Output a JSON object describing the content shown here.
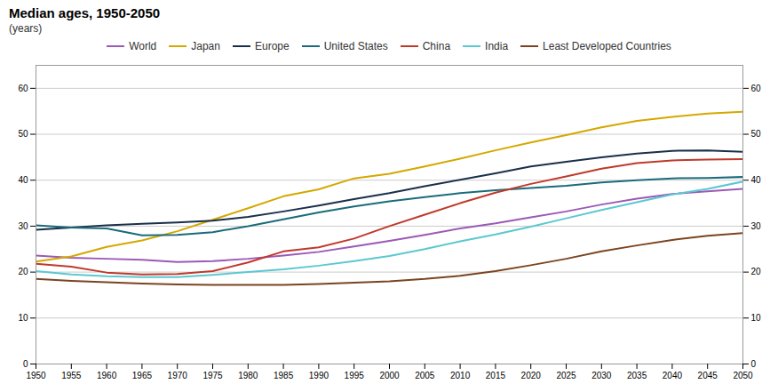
{
  "chart_data": {
    "type": "line",
    "title": "Median ages, 1950-2050",
    "subtitle": "(years)",
    "x": [
      1950,
      1955,
      1960,
      1965,
      1970,
      1975,
      1980,
      1985,
      1990,
      1995,
      2000,
      2005,
      2010,
      2015,
      2020,
      2025,
      2030,
      2035,
      2040,
      2045,
      2050
    ],
    "series": [
      {
        "name": "World",
        "color": "#9b59b6",
        "values": [
          23.6,
          23.1,
          22.9,
          22.7,
          22.2,
          22.4,
          22.9,
          23.6,
          24.4,
          25.6,
          26.8,
          28.1,
          29.5,
          30.6,
          31.9,
          33.2,
          34.7,
          36.0,
          37.0,
          37.6,
          38.1
        ]
      },
      {
        "name": "Japan",
        "color": "#d4a800",
        "values": [
          22.3,
          23.4,
          25.5,
          26.9,
          28.9,
          31.4,
          33.9,
          36.5,
          38.0,
          40.4,
          41.4,
          43.0,
          44.7,
          46.5,
          48.2,
          49.8,
          51.5,
          52.9,
          53.8,
          54.5,
          54.9
        ]
      },
      {
        "name": "Europe",
        "color": "#1a2f4a",
        "values": [
          29.2,
          29.7,
          30.2,
          30.5,
          30.8,
          31.2,
          32.0,
          33.2,
          34.5,
          35.9,
          37.2,
          38.7,
          40.1,
          41.5,
          43.0,
          44.0,
          45.0,
          45.8,
          46.4,
          46.5,
          46.2
        ]
      },
      {
        "name": "United States",
        "color": "#1a6b7a",
        "values": [
          30.2,
          29.7,
          29.5,
          28.0,
          28.1,
          28.7,
          30.0,
          31.5,
          33.0,
          34.3,
          35.4,
          36.3,
          37.2,
          37.8,
          38.3,
          38.8,
          39.5,
          40.0,
          40.4,
          40.5,
          40.7
        ]
      },
      {
        "name": "China",
        "color": "#c0392b",
        "values": [
          21.8,
          21.2,
          19.9,
          19.5,
          19.6,
          20.2,
          22.1,
          24.5,
          25.4,
          27.3,
          30.0,
          32.5,
          35.0,
          37.3,
          39.2,
          40.8,
          42.5,
          43.7,
          44.3,
          44.5,
          44.6
        ]
      },
      {
        "name": "India",
        "color": "#5bc8d0",
        "values": [
          20.2,
          19.5,
          19.1,
          18.9,
          18.9,
          19.4,
          20.0,
          20.6,
          21.4,
          22.4,
          23.5,
          25.0,
          26.7,
          28.2,
          29.9,
          31.7,
          33.5,
          35.2,
          36.9,
          38.1,
          39.7
        ]
      },
      {
        "name": "Least Developed Countries",
        "color": "#7b4420",
        "values": [
          18.5,
          18.1,
          17.8,
          17.5,
          17.3,
          17.2,
          17.2,
          17.2,
          17.4,
          17.7,
          18.0,
          18.5,
          19.2,
          20.2,
          21.5,
          22.9,
          24.5,
          25.8,
          27.0,
          27.9,
          28.5
        ]
      }
    ],
    "xlim": [
      1950,
      2050
    ],
    "ylim": [
      0,
      65
    ],
    "xticks": [
      1950,
      1955,
      1960,
      1965,
      1970,
      1975,
      1980,
      1985,
      1990,
      1995,
      2000,
      2005,
      2010,
      2015,
      2020,
      2025,
      2030,
      2035,
      2040,
      2045,
      2050
    ],
    "yticks": [
      0,
      10,
      20,
      30,
      40,
      50,
      60
    ],
    "grid": true,
    "legend": "top"
  }
}
